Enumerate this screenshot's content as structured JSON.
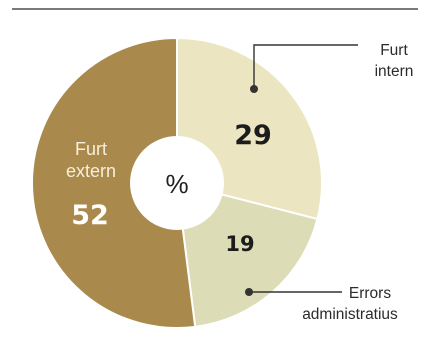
{
  "chart_data": {
    "type": "pie",
    "variant": "donut",
    "center_label": "%",
    "slices": [
      {
        "label_lines": [
          "Furt",
          "intern"
        ],
        "value": 29,
        "color": "#ebe6c1"
      },
      {
        "label_lines": [
          "Errors",
          "administratius"
        ],
        "value": 19,
        "color": "#dcdcb6"
      },
      {
        "label_lines": [
          "Furt",
          "extern"
        ],
        "value": 52,
        "color": "#a98a4c"
      }
    ],
    "colors": {
      "top_rule": "#7a7a7a",
      "leader": "#333333",
      "value_text_dark": "#1c1c1c",
      "value_text_light": "#ffffff"
    }
  }
}
